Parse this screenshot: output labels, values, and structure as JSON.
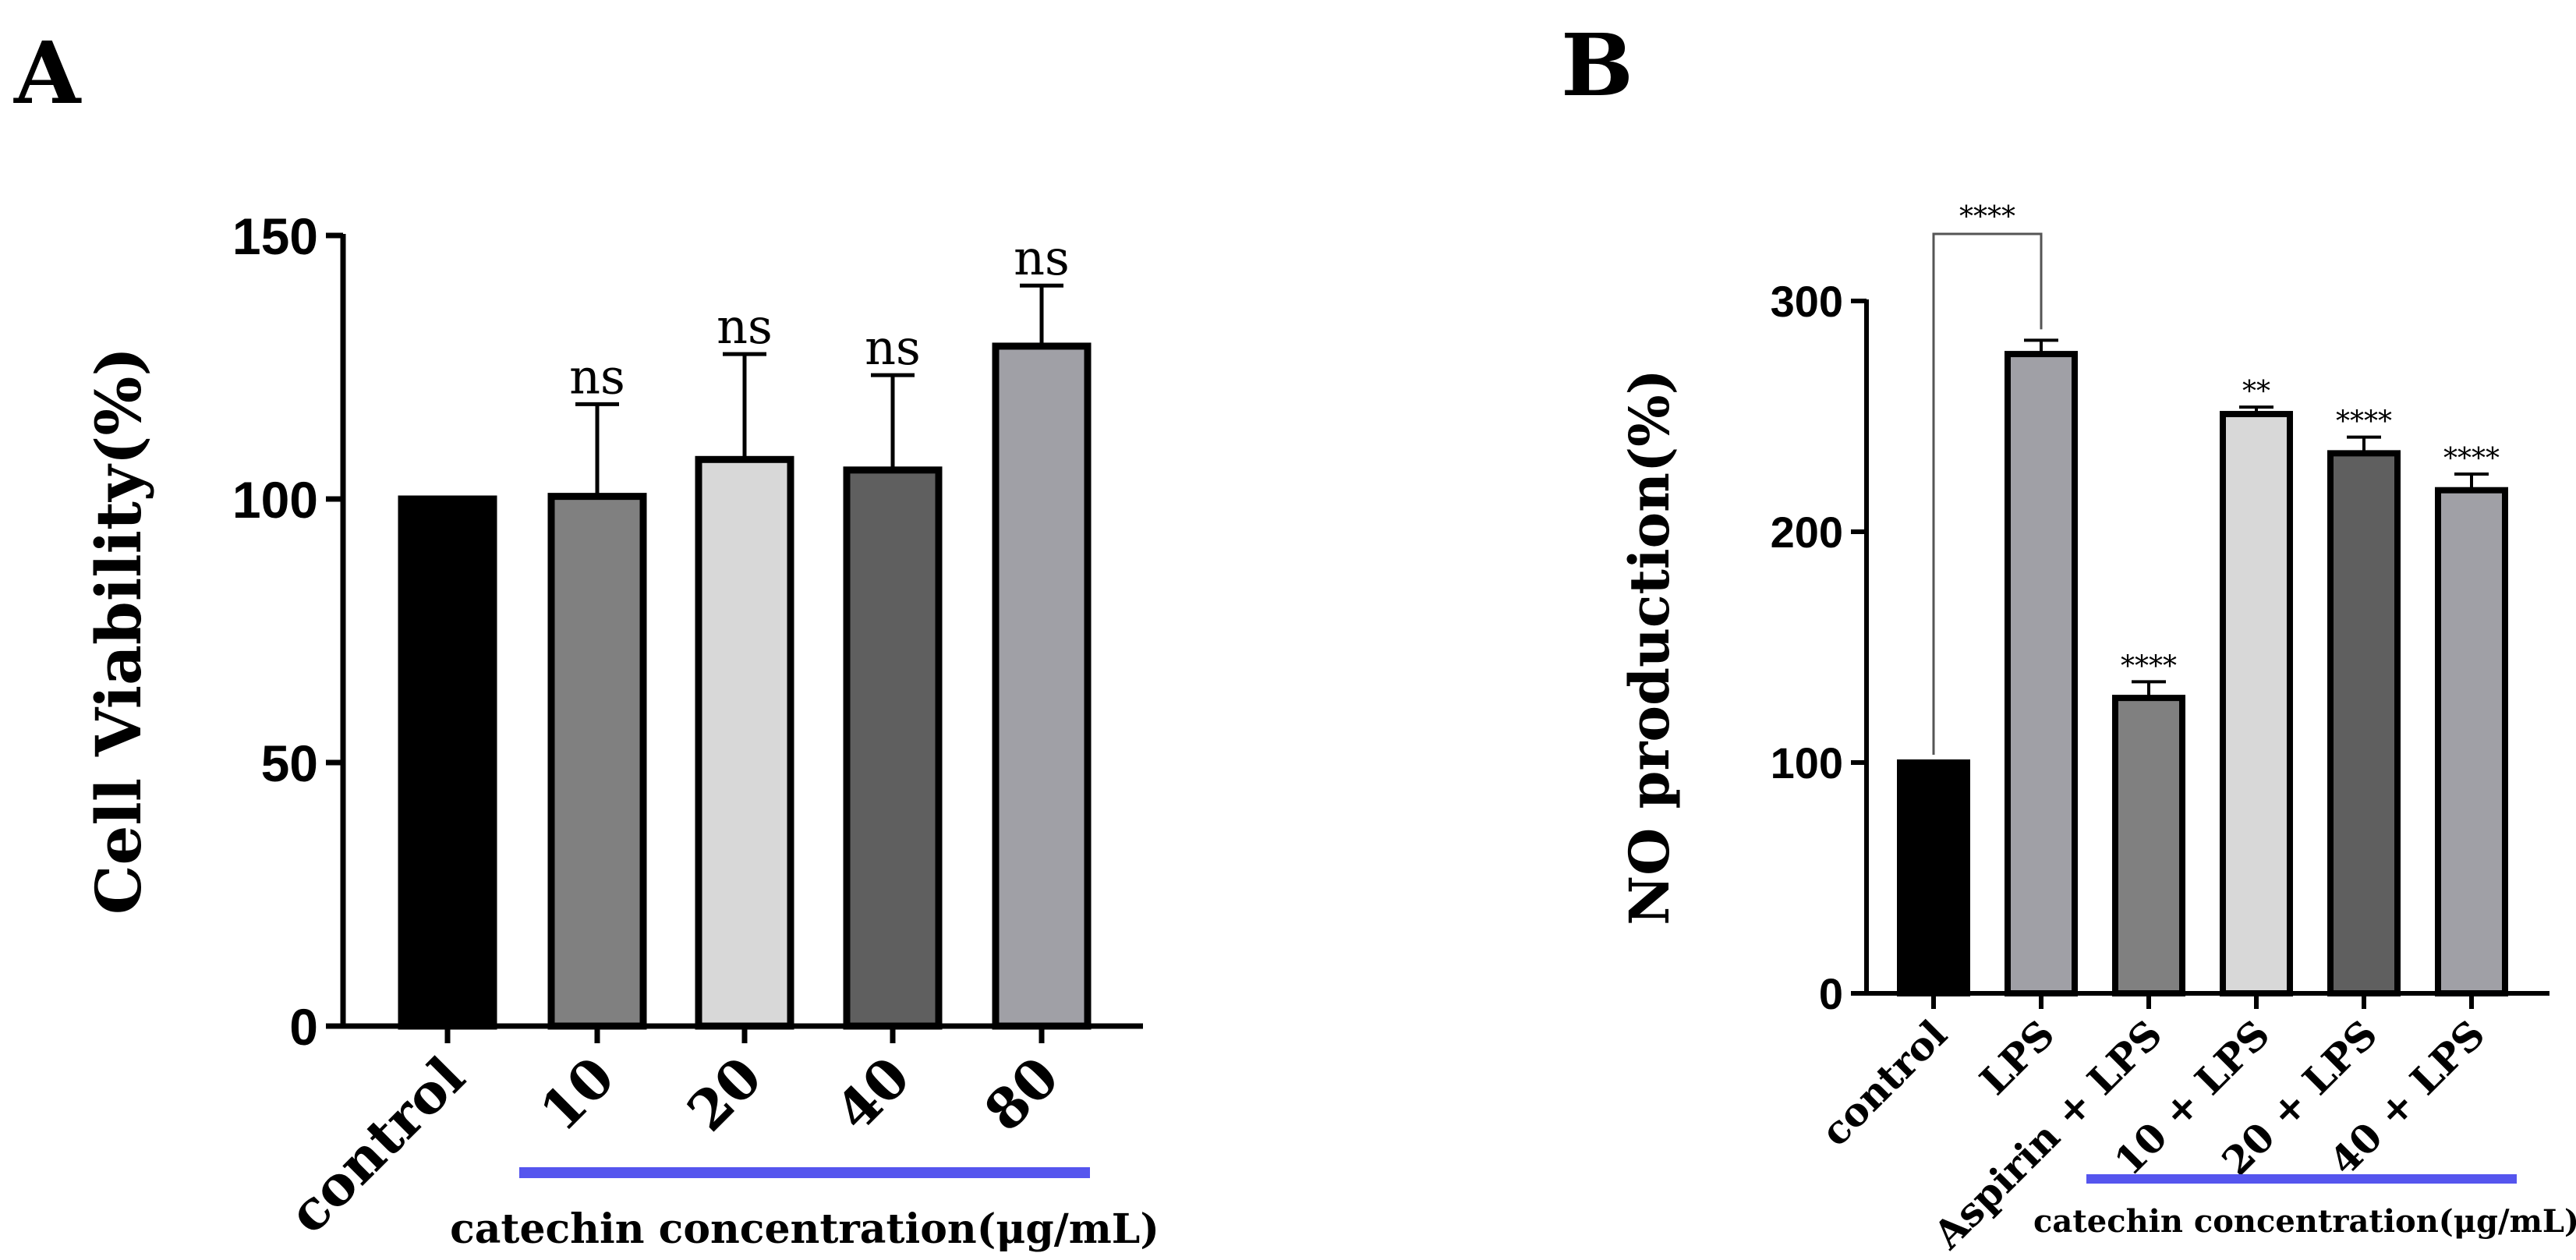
{
  "chart_data": [
    {
      "panel": "A",
      "type": "bar",
      "title": "",
      "xlabel": "",
      "ylabel": "Cell Viability(%)",
      "ylim": [
        0,
        150
      ],
      "yticks": [
        "0",
        "50",
        "100",
        "150"
      ],
      "categories": [
        "control",
        "10",
        "20",
        "40",
        "80"
      ],
      "values": [
        100,
        100.5,
        107.5,
        105.5,
        129
      ],
      "errors": [
        0,
        17.5,
        20,
        18,
        11.5
      ],
      "annotations": [
        "",
        "ns",
        "ns",
        "ns",
        "ns"
      ],
      "colors": [
        "#000000",
        "#808080",
        "#d8d8d8",
        "#5f5f5f",
        "#a0a0a6"
      ],
      "group_label": "catechin concentration(μg/mL)",
      "group_line_color": "#5555ee"
    },
    {
      "panel": "B",
      "type": "bar",
      "title": "",
      "xlabel": "",
      "ylabel": "NO production(%)",
      "ylim": [
        0,
        300
      ],
      "yticks": [
        "0",
        "100",
        "200",
        "300"
      ],
      "categories": [
        "control",
        "LPS",
        "Aspirin + LPS",
        "10 + LPS",
        "20 + LPS",
        "40 + LPS"
      ],
      "values": [
        100,
        277,
        128,
        251,
        234,
        218
      ],
      "errors": [
        0,
        6,
        7,
        3,
        7,
        7
      ],
      "annotations": [
        "",
        "",
        "****",
        "**",
        "****",
        "****"
      ],
      "bracket_label": "****",
      "colors": [
        "#000000",
        "#a0a0a6",
        "#808080",
        "#d8d8d8",
        "#5f5f5f",
        "#a0a0a6"
      ],
      "group_label": "catechin concentration(μg/mL)",
      "group_line_color": "#5555ee"
    }
  ]
}
